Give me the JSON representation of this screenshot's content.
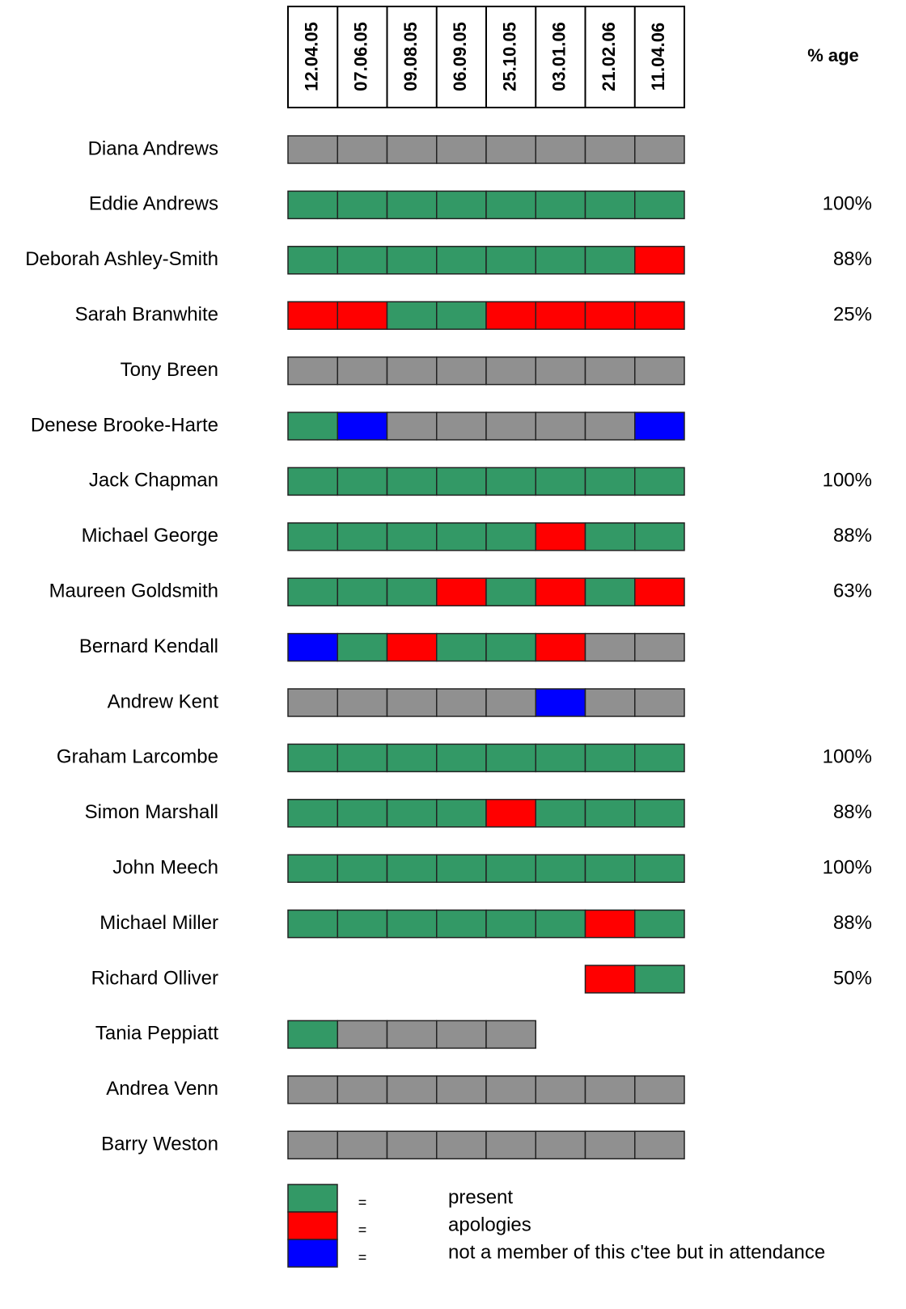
{
  "table": {
    "percent_header": "% age",
    "dates": [
      "12.04.05",
      "07.06.05",
      "09.08.05",
      "06.09.05",
      "25.10.05",
      "03.01.06",
      "21.02.06",
      "11.04.06"
    ],
    "rows": [
      {
        "name": "Diana Andrews",
        "cells": [
          "#909090",
          "#909090",
          "#909090",
          "#909090",
          "#909090",
          "#909090",
          "#909090",
          "#909090"
        ],
        "percent": null
      },
      {
        "name": "Eddie Andrews",
        "cells": [
          "#339966",
          "#339966",
          "#339966",
          "#339966",
          "#339966",
          "#339966",
          "#339966",
          "#339966"
        ],
        "percent": "100%"
      },
      {
        "name": "Deborah Ashley-Smith",
        "cells": [
          "#339966",
          "#339966",
          "#339966",
          "#339966",
          "#339966",
          "#339966",
          "#339966",
          "#ff0000"
        ],
        "percent": "88%"
      },
      {
        "name": "Sarah Branwhite",
        "cells": [
          "#ff0000",
          "#ff0000",
          "#339966",
          "#339966",
          "#ff0000",
          "#ff0000",
          "#ff0000",
          "#ff0000"
        ],
        "percent": "25%"
      },
      {
        "name": "Tony Breen",
        "cells": [
          "#909090",
          "#909090",
          "#909090",
          "#909090",
          "#909090",
          "#909090",
          "#909090",
          "#909090"
        ],
        "percent": null
      },
      {
        "name": "Denese Brooke-Harte",
        "cells": [
          "#339966",
          "#0000ff",
          "#909090",
          "#909090",
          "#909090",
          "#909090",
          "#909090",
          "#0000ff"
        ],
        "percent": null
      },
      {
        "name": "Jack Chapman",
        "cells": [
          "#339966",
          "#339966",
          "#339966",
          "#339966",
          "#339966",
          "#339966",
          "#339966",
          "#339966"
        ],
        "percent": "100%"
      },
      {
        "name": "Michael George",
        "cells": [
          "#339966",
          "#339966",
          "#339966",
          "#339966",
          "#339966",
          "#ff0000",
          "#339966",
          "#339966"
        ],
        "percent": "88%"
      },
      {
        "name": "Maureen Goldsmith",
        "cells": [
          "#339966",
          "#339966",
          "#339966",
          "#ff0000",
          "#339966",
          "#ff0000",
          "#339966",
          "#ff0000"
        ],
        "percent": "63%"
      },
      {
        "name": "Bernard Kendall",
        "cells": [
          "#0000ff",
          "#339966",
          "#ff0000",
          "#339966",
          "#339966",
          "#ff0000",
          "#909090",
          "#909090"
        ],
        "percent": null
      },
      {
        "name": "Andrew Kent",
        "cells": [
          "#909090",
          "#909090",
          "#909090",
          "#909090",
          "#909090",
          "#0000ff",
          "#909090",
          "#909090"
        ],
        "percent": null
      },
      {
        "name": "Graham Larcombe",
        "cells": [
          "#339966",
          "#339966",
          "#339966",
          "#339966",
          "#339966",
          "#339966",
          "#339966",
          "#339966"
        ],
        "percent": "100%"
      },
      {
        "name": "Simon Marshall",
        "cells": [
          "#339966",
          "#339966",
          "#339966",
          "#339966",
          "#ff0000",
          "#339966",
          "#339966",
          "#339966"
        ],
        "percent": "88%"
      },
      {
        "name": "John Meech",
        "cells": [
          "#339966",
          "#339966",
          "#339966",
          "#339966",
          "#339966",
          "#339966",
          "#339966",
          "#339966"
        ],
        "percent": "100%"
      },
      {
        "name": "Michael Miller",
        "cells": [
          "#339966",
          "#339966",
          "#339966",
          "#339966",
          "#339966",
          "#339966",
          "#ff0000",
          "#339966"
        ],
        "percent": "88%"
      },
      {
        "name": "Richard Olliver",
        "cells": [
          null,
          null,
          null,
          null,
          null,
          null,
          "#ff0000",
          "#339966"
        ],
        "percent": "50%"
      },
      {
        "name": "Tania Peppiatt",
        "cells": [
          "#339966",
          "#909090",
          "#909090",
          "#909090",
          "#909090",
          null,
          null,
          null
        ],
        "percent": null
      },
      {
        "name": "Andrea Venn",
        "cells": [
          "#909090",
          "#909090",
          "#909090",
          "#909090",
          "#909090",
          "#909090",
          "#909090",
          "#909090"
        ],
        "percent": null
      },
      {
        "name": "Barry Weston",
        "cells": [
          "#909090",
          "#909090",
          "#909090",
          "#909090",
          "#909090",
          "#909090",
          "#909090",
          "#909090"
        ],
        "percent": null
      }
    ],
    "legend": [
      {
        "symbol": "=",
        "label": "present",
        "color": "#339966"
      },
      {
        "symbol": "=",
        "label": "apologies",
        "color": "#ff0000"
      },
      {
        "symbol": "=",
        "label": "not a member of this c'tee but in attendance",
        "color": "#0000ff"
      }
    ]
  }
}
